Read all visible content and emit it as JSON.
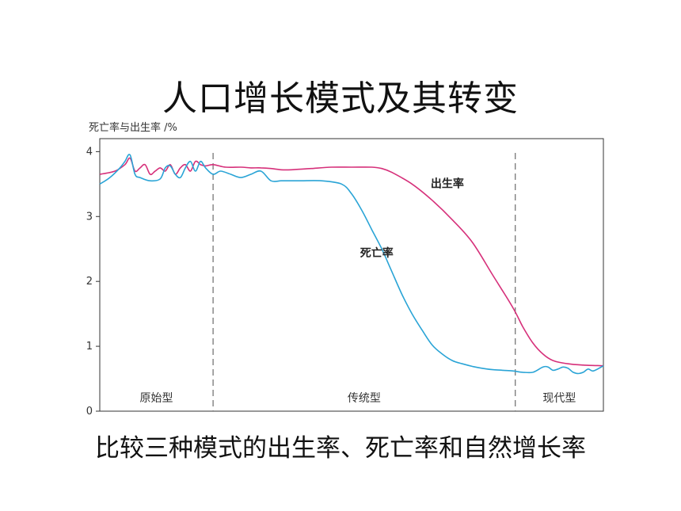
{
  "title": "人口增长模式及其转变",
  "caption": "比较三种模式的出生率、死亡率和自然增长率",
  "chart_data": {
    "type": "line",
    "ylabel": "死亡率与出生率 /%",
    "xlabel": "",
    "ylim": [
      0,
      4.2
    ],
    "yticks": [
      0,
      1,
      2,
      3,
      4
    ],
    "xlim": [
      0,
      100
    ],
    "grid": false,
    "phases": [
      {
        "label": "原始型",
        "start": 0,
        "end": 22.5
      },
      {
        "label": "传统型",
        "start": 22.5,
        "end": 82.5
      },
      {
        "label": "现代型",
        "start": 82.5,
        "end": 100
      }
    ],
    "series": [
      {
        "name": "出生率",
        "color": "#d6307a",
        "x": [
          0,
          3,
          5,
          6,
          7,
          8,
          9,
          10,
          11,
          12,
          13,
          14,
          15,
          16,
          17,
          18,
          19,
          20,
          21,
          22.5,
          25,
          28,
          30,
          32,
          34,
          36,
          38,
          42,
          46,
          50,
          54,
          56,
          58,
          62,
          66,
          70,
          74,
          78,
          82,
          84,
          86,
          88,
          90,
          93,
          96,
          100
        ],
        "y": [
          3.65,
          3.7,
          3.8,
          3.9,
          3.7,
          3.75,
          3.8,
          3.65,
          3.7,
          3.75,
          3.7,
          3.8,
          3.65,
          3.75,
          3.8,
          3.7,
          3.85,
          3.8,
          3.78,
          3.8,
          3.76,
          3.76,
          3.75,
          3.75,
          3.74,
          3.72,
          3.72,
          3.74,
          3.76,
          3.76,
          3.76,
          3.74,
          3.68,
          3.5,
          3.25,
          2.95,
          2.6,
          2.1,
          1.6,
          1.3,
          1.05,
          0.88,
          0.78,
          0.73,
          0.71,
          0.7
        ]
      },
      {
        "name": "死亡率",
        "color": "#2aa4d6",
        "x": [
          0,
          2,
          4,
          5,
          6,
          7,
          8,
          10,
          12,
          13,
          14,
          15,
          16,
          17,
          18,
          19,
          20,
          21,
          22.5,
          24,
          26,
          28,
          30,
          32,
          34,
          36,
          38,
          40,
          44,
          48,
          50,
          52,
          54,
          56,
          58,
          60,
          62,
          64,
          66,
          68,
          70,
          72,
          74,
          76,
          78,
          80,
          82,
          84,
          86,
          88,
          89,
          90,
          91,
          92,
          93,
          94,
          95,
          96,
          97,
          98,
          100
        ],
        "y": [
          3.5,
          3.6,
          3.75,
          3.85,
          3.95,
          3.65,
          3.6,
          3.55,
          3.58,
          3.75,
          3.78,
          3.65,
          3.6,
          3.75,
          3.85,
          3.7,
          3.85,
          3.75,
          3.65,
          3.7,
          3.65,
          3.6,
          3.65,
          3.7,
          3.55,
          3.55,
          3.55,
          3.55,
          3.55,
          3.5,
          3.35,
          3.1,
          2.8,
          2.5,
          2.15,
          1.8,
          1.5,
          1.25,
          1.02,
          0.88,
          0.78,
          0.73,
          0.69,
          0.66,
          0.64,
          0.63,
          0.62,
          0.6,
          0.6,
          0.68,
          0.68,
          0.63,
          0.65,
          0.68,
          0.66,
          0.6,
          0.58,
          0.6,
          0.65,
          0.62,
          0.7
        ]
      }
    ],
    "annotations": [
      {
        "text": "出生率",
        "series": "出生率"
      },
      {
        "text": "死亡率",
        "series": "死亡率"
      }
    ]
  }
}
